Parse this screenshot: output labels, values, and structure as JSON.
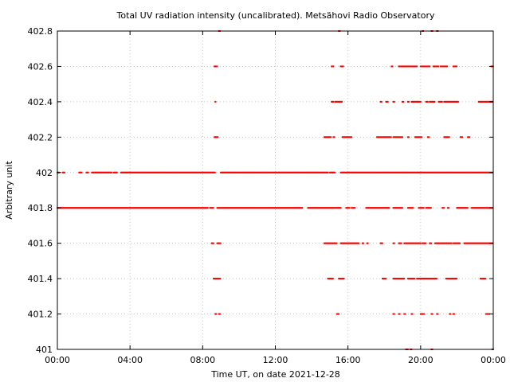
{
  "chart_data": {
    "type": "scatter",
    "title": "Total UV radiation intensity (uncalibrated). Metsähovi Radio Observatory",
    "xlabel": "Time UT, on date 2021-12-28",
    "ylabel": "Arbitrary unit",
    "x_unit": "hours UT",
    "xlim": [
      0,
      24
    ],
    "ylim": [
      401,
      402.8
    ],
    "x_tick_values": [
      0,
      4,
      8,
      12,
      16,
      20,
      24
    ],
    "x_tick_labels": [
      "00:00",
      "04:00",
      "08:00",
      "12:00",
      "16:00",
      "20:00",
      "00:00"
    ],
    "y_tick_values": [
      401,
      401.2,
      401.4,
      401.6,
      401.8,
      402,
      402.2,
      402.4,
      402.6,
      402.8
    ],
    "y_tick_labels": [
      "401",
      "401.2",
      "401.4",
      "401.6",
      "401.8",
      "402",
      "402.2",
      "402.4",
      "402.6",
      "402.8"
    ],
    "grid": true,
    "colors": {
      "points": "#ff0000",
      "grid": "#c8c8c8",
      "axis": "#000000"
    },
    "series": [
      {
        "points_by_level": [
          {
            "y": 402.8,
            "x_runs": [
              [
                8.9,
                8.95
              ],
              [
                15.5,
                15.55
              ],
              [
                20.1,
                20.15
              ],
              [
                20.6,
                20.65
              ],
              [
                20.9,
                20.95
              ]
            ]
          },
          {
            "y": 402.6,
            "x_runs": [
              [
                8.65,
                8.8
              ],
              [
                15.1,
                15.2
              ],
              [
                15.6,
                15.75
              ],
              [
                18.4,
                18.45
              ],
              [
                18.8,
                19.8
              ],
              [
                20.0,
                20.5
              ],
              [
                20.7,
                21.0
              ],
              [
                21.1,
                21.5
              ],
              [
                21.8,
                22.0
              ],
              [
                23.9,
                24.0
              ]
            ]
          },
          {
            "y": 402.4,
            "x_runs": [
              [
                8.7,
                8.72
              ],
              [
                15.1,
                15.2
              ],
              [
                15.3,
                15.7
              ],
              [
                17.8,
                17.85
              ],
              [
                18.1,
                18.2
              ],
              [
                18.5,
                18.55
              ],
              [
                19.0,
                19.05
              ],
              [
                19.3,
                19.35
              ],
              [
                19.5,
                20.0
              ],
              [
                20.3,
                20.4
              ],
              [
                20.5,
                20.8
              ],
              [
                21.0,
                21.2
              ],
              [
                21.3,
                22.1
              ],
              [
                23.2,
                24.0
              ]
            ]
          },
          {
            "y": 402.2,
            "x_runs": [
              [
                8.65,
                8.85
              ],
              [
                14.7,
                15.1
              ],
              [
                15.2,
                15.25
              ],
              [
                15.7,
                16.2
              ],
              [
                17.6,
                18.4
              ],
              [
                18.5,
                19.0
              ],
              [
                19.3,
                19.35
              ],
              [
                19.7,
                20.1
              ],
              [
                20.4,
                20.45
              ],
              [
                21.3,
                21.6
              ],
              [
                22.2,
                22.3
              ],
              [
                22.6,
                22.7
              ]
            ]
          },
          {
            "y": 402.0,
            "x_runs": [
              [
                0.0,
                0.1
              ],
              [
                0.3,
                0.4
              ],
              [
                1.2,
                1.35
              ],
              [
                1.6,
                1.7
              ],
              [
                1.9,
                3.0
              ],
              [
                3.1,
                3.3
              ],
              [
                3.5,
                8.7
              ],
              [
                9.0,
                14.9
              ],
              [
                15.0,
                15.3
              ],
              [
                15.6,
                24.0
              ]
            ]
          },
          {
            "y": 401.8,
            "x_runs": [
              [
                0.0,
                8.3
              ],
              [
                8.4,
                8.6
              ],
              [
                8.8,
                13.5
              ],
              [
                13.8,
                15.6
              ],
              [
                15.9,
                16.1
              ],
              [
                16.2,
                16.4
              ],
              [
                17.0,
                18.3
              ],
              [
                18.5,
                19.0
              ],
              [
                19.3,
                19.6
              ],
              [
                19.9,
                20.2
              ],
              [
                20.3,
                20.6
              ],
              [
                21.2,
                21.3
              ],
              [
                21.5,
                21.55
              ],
              [
                22.0,
                22.6
              ],
              [
                22.8,
                24.0
              ]
            ]
          },
          {
            "y": 401.6,
            "x_runs": [
              [
                8.5,
                8.6
              ],
              [
                8.8,
                9.0
              ],
              [
                14.7,
                15.4
              ],
              [
                15.6,
                16.6
              ],
              [
                16.8,
                16.85
              ],
              [
                17.05,
                17.1
              ],
              [
                17.8,
                17.9
              ],
              [
                18.5,
                18.55
              ],
              [
                18.8,
                18.95
              ],
              [
                19.1,
                20.0
              ],
              [
                20.1,
                20.3
              ],
              [
                20.5,
                20.6
              ],
              [
                20.8,
                21.7
              ],
              [
                21.8,
                22.2
              ],
              [
                22.4,
                24.0
              ]
            ]
          },
          {
            "y": 401.4,
            "x_runs": [
              [
                8.6,
                9.0
              ],
              [
                14.9,
                15.2
              ],
              [
                15.5,
                15.8
              ],
              [
                17.9,
                18.1
              ],
              [
                18.5,
                19.1
              ],
              [
                19.3,
                19.7
              ],
              [
                19.8,
                20.9
              ],
              [
                21.4,
                22.0
              ],
              [
                23.3,
                23.6
              ]
            ]
          },
          {
            "y": 401.2,
            "x_runs": [
              [
                8.7,
                8.75
              ],
              [
                8.9,
                8.95
              ],
              [
                15.4,
                15.5
              ],
              [
                18.5,
                18.55
              ],
              [
                18.8,
                18.85
              ],
              [
                19.1,
                19.15
              ],
              [
                19.5,
                19.55
              ],
              [
                20.0,
                20.2
              ],
              [
                20.6,
                20.65
              ],
              [
                20.9,
                20.95
              ],
              [
                21.6,
                21.65
              ],
              [
                21.8,
                21.85
              ],
              [
                23.6,
                23.8
              ]
            ]
          },
          {
            "y": 401.0,
            "x_runs": [
              [
                19.2,
                19.3
              ],
              [
                19.45,
                19.5
              ],
              [
                20.6,
                20.65
              ],
              [
                23.95,
                24.0
              ]
            ]
          }
        ]
      }
    ]
  }
}
